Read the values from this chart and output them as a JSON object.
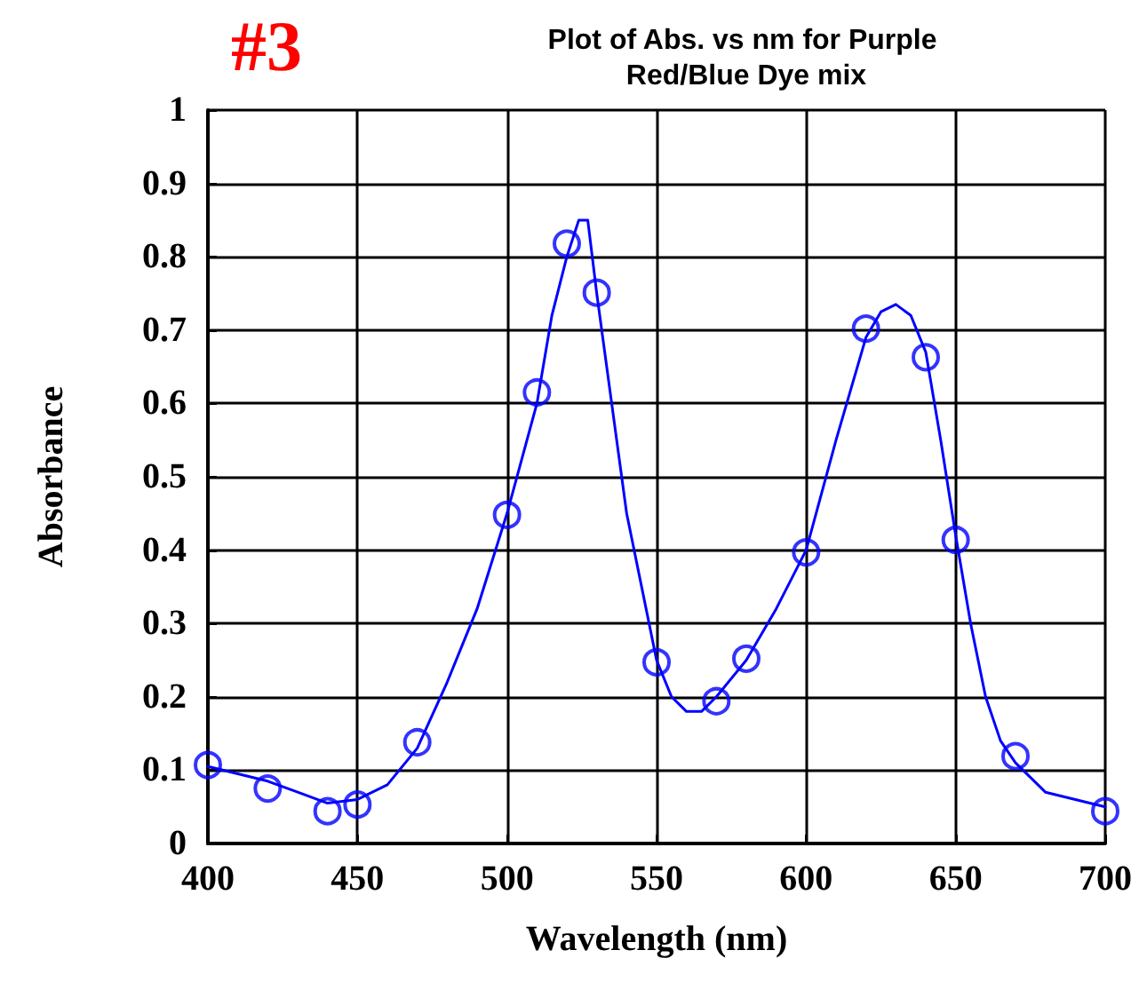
{
  "chart_data": {
    "type": "scatter",
    "title": "Plot of Abs. vs nm for Purple Red/Blue Dye mix",
    "annotations": [
      "#3"
    ],
    "xlabel": "Wavelength (nm)",
    "ylabel": "Absorbance",
    "xlim": [
      400,
      700
    ],
    "xticks": [
      400,
      450,
      500,
      550,
      600,
      650,
      700
    ],
    "ylim": [
      0,
      1
    ],
    "yticks": [
      0,
      0.1,
      0.2,
      0.3,
      0.4,
      0.5,
      0.6,
      0.7,
      0.8,
      0.9,
      1
    ],
    "grid": true,
    "series": [
      {
        "marker": "circle",
        "color": "#0000ff",
        "x": [
          400,
          420,
          440,
          450,
          470,
          500,
          510,
          520,
          530,
          550,
          570,
          580,
          600,
          620,
          640,
          650,
          670,
          700
        ],
        "values": [
          0.107,
          0.075,
          0.044,
          0.053,
          0.138,
          0.448,
          0.615,
          0.818,
          0.751,
          0.247,
          0.194,
          0.252,
          0.397,
          0.702,
          0.663,
          0.414,
          0.119,
          0.044
        ]
      },
      {
        "type": "line",
        "marker": "none",
        "line_style": "solid",
        "color": "#0000ff",
        "x": [
          400,
          410,
          420,
          430,
          440,
          450,
          460,
          470,
          480,
          490,
          500,
          510,
          515,
          520,
          524,
          527,
          530,
          535,
          540,
          545,
          550,
          555,
          560,
          565,
          570,
          580,
          590,
          600,
          610,
          620,
          625,
          630,
          635,
          640,
          645,
          650,
          655,
          660,
          665,
          670,
          680,
          690,
          700
        ],
        "values": [
          0.105,
          0.095,
          0.085,
          0.07,
          0.055,
          0.06,
          0.08,
          0.13,
          0.22,
          0.32,
          0.45,
          0.6,
          0.72,
          0.8,
          0.85,
          0.85,
          0.75,
          0.6,
          0.45,
          0.35,
          0.25,
          0.2,
          0.18,
          0.18,
          0.2,
          0.25,
          0.32,
          0.4,
          0.55,
          0.69,
          0.725,
          0.735,
          0.72,
          0.67,
          0.55,
          0.42,
          0.3,
          0.2,
          0.14,
          0.11,
          0.07,
          0.06,
          0.05
        ]
      }
    ]
  }
}
